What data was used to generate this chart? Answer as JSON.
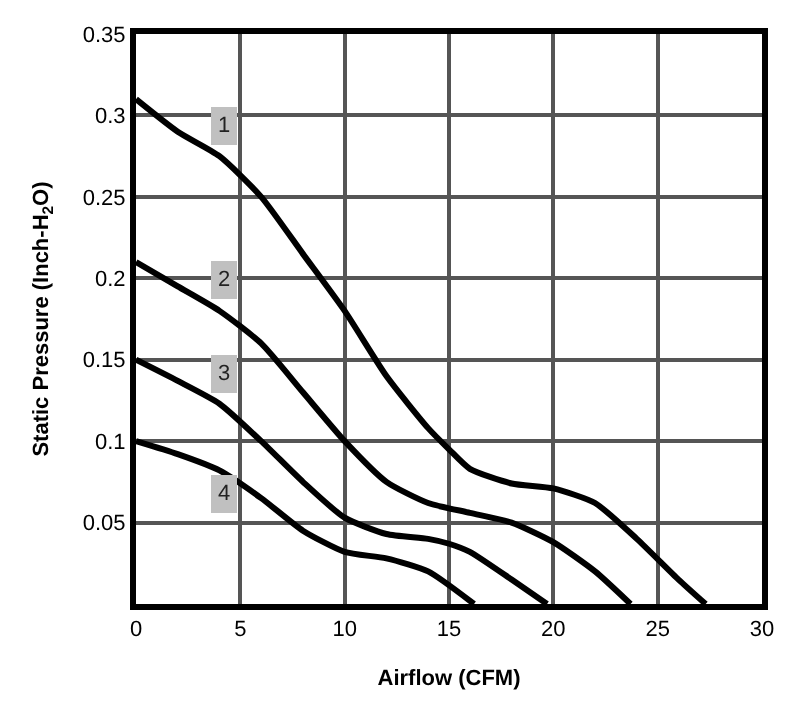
{
  "chart_data": {
    "type": "line",
    "xlabel": "Airflow (CFM)",
    "ylabel": "Static Pressure (Inch-H$_{2}$O)",
    "xlim": [
      0,
      30
    ],
    "xticks": [
      0,
      5,
      10,
      15,
      20,
      25,
      30
    ],
    "ylim": [
      0,
      0.35
    ],
    "yticks": [
      0.05,
      0.1,
      0.15,
      0.2,
      0.25,
      0.3,
      0.35
    ],
    "grid": true,
    "legend": false,
    "marker": "none",
    "line_style": "solid",
    "series": [
      {
        "name": "1",
        "color": "#000000",
        "x": [
          0,
          2,
          4,
          6,
          8,
          10,
          12,
          14,
          15,
          16,
          18,
          20,
          22,
          24,
          26,
          27.3
        ],
        "values": [
          0.31,
          0.29,
          0.275,
          0.25,
          0.215,
          0.18,
          0.14,
          0.108,
          0.095,
          0.083,
          0.074,
          0.071,
          0.062,
          0.04,
          0.015,
          0
        ]
      },
      {
        "name": "2",
        "color": "#000000",
        "x": [
          0,
          2,
          4,
          6,
          8,
          10,
          12,
          14,
          16,
          18,
          20,
          22,
          23.7
        ],
        "values": [
          0.21,
          0.195,
          0.18,
          0.16,
          0.13,
          0.1,
          0.075,
          0.062,
          0.056,
          0.05,
          0.038,
          0.02,
          0
        ]
      },
      {
        "name": "3",
        "color": "#000000",
        "x": [
          0,
          2,
          4,
          6,
          8,
          10,
          12,
          14,
          15,
          16,
          18,
          19.7
        ],
        "values": [
          0.15,
          0.137,
          0.123,
          0.1,
          0.075,
          0.053,
          0.043,
          0.04,
          0.037,
          0.032,
          0.015,
          0
        ]
      },
      {
        "name": "4",
        "color": "#000000",
        "x": [
          0,
          2,
          4,
          6,
          8,
          10,
          12,
          14,
          16.2
        ],
        "values": [
          0.1,
          0.092,
          0.082,
          0.065,
          0.045,
          0.032,
          0.028,
          0.02,
          0
        ]
      }
    ]
  }
}
